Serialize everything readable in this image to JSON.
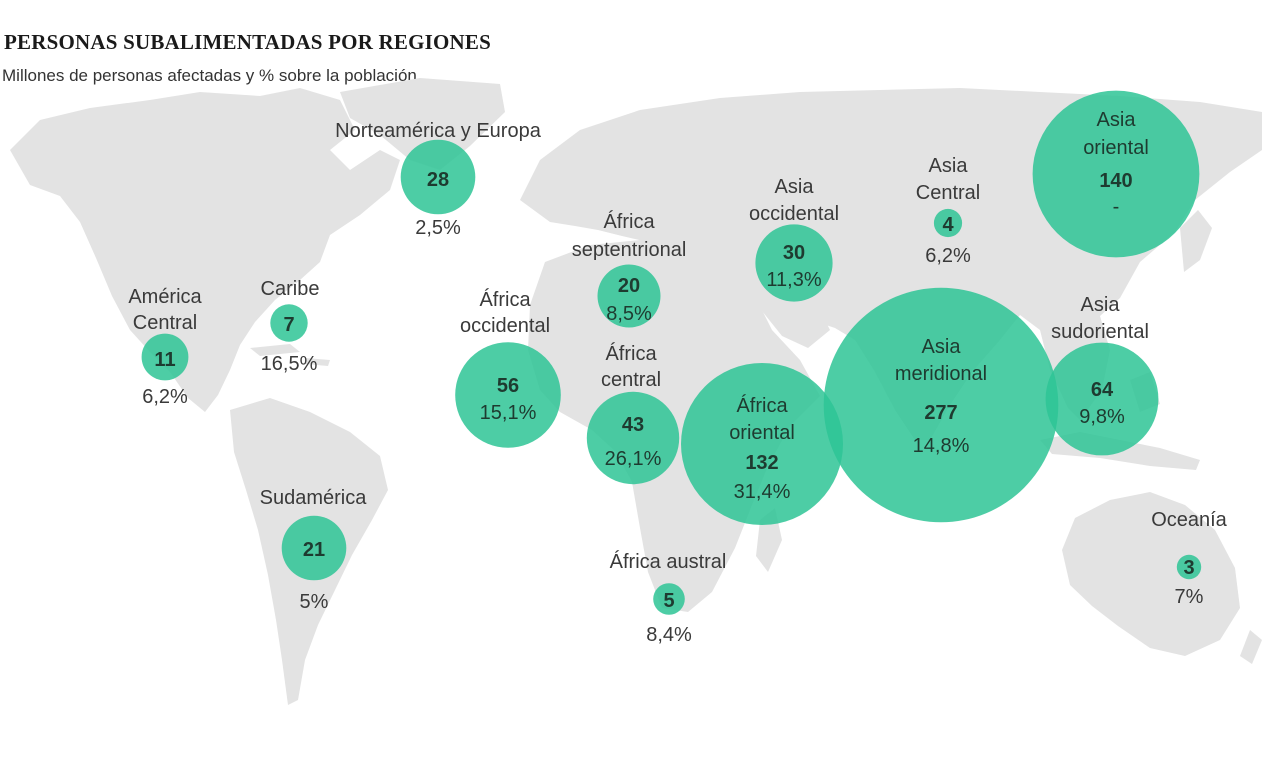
{
  "title": "PERSONAS SUBALIMENTADAS POR REGIONES",
  "subtitle": "Millones de personas afectadas y % sobre la población",
  "colors": {
    "bubble": "#2ec495",
    "bubble_text": "#1e3b30",
    "label": "#3a3a3a",
    "land": "#e3e3e3",
    "background": "#ffffff"
  },
  "regions": [
    {
      "id": "norteamerica-y-europa",
      "name": [
        "Norteamérica y Europa"
      ],
      "value": "28",
      "pct": "2,5%"
    },
    {
      "id": "america-central",
      "name": [
        "América",
        "Central"
      ],
      "value": "11",
      "pct": "6,2%"
    },
    {
      "id": "caribe",
      "name": [
        "Caribe"
      ],
      "value": "7",
      "pct": "16,5%"
    },
    {
      "id": "sudamerica",
      "name": [
        "Sudamérica"
      ],
      "value": "21",
      "pct": "5%"
    },
    {
      "id": "africa-septentrional",
      "name": [
        "África",
        "septentrional"
      ],
      "value": "20",
      "pct": "8,5%"
    },
    {
      "id": "africa-occidental",
      "name": [
        "África",
        "occidental"
      ],
      "value": "56",
      "pct": "15,1%"
    },
    {
      "id": "africa-central",
      "name": [
        "África",
        "central"
      ],
      "value": "43",
      "pct": "26,1%"
    },
    {
      "id": "africa-oriental",
      "name": [
        "África",
        "oriental"
      ],
      "value": "132",
      "pct": "31,4%"
    },
    {
      "id": "africa-austral",
      "name": [
        "África austral"
      ],
      "value": "5",
      "pct": "8,4%"
    },
    {
      "id": "asia-occidental",
      "name": [
        "Asia",
        "occidental"
      ],
      "value": "30",
      "pct": "11,3%"
    },
    {
      "id": "asia-central",
      "name": [
        "Asia",
        "Central"
      ],
      "value": "4",
      "pct": "6,2%"
    },
    {
      "id": "asia-oriental",
      "name": [
        "Asia",
        "oriental"
      ],
      "value": "140",
      "pct": "-"
    },
    {
      "id": "asia-meridional",
      "name": [
        "Asia",
        "meridional"
      ],
      "value": "277",
      "pct": "14,8%"
    },
    {
      "id": "asia-sudoriental",
      "name": [
        "Asia",
        "sudoriental"
      ],
      "value": "64",
      "pct": "9,8%"
    },
    {
      "id": "oceania",
      "name": [
        "Oceanía"
      ],
      "value": "3",
      "pct": "7%"
    }
  ]
}
